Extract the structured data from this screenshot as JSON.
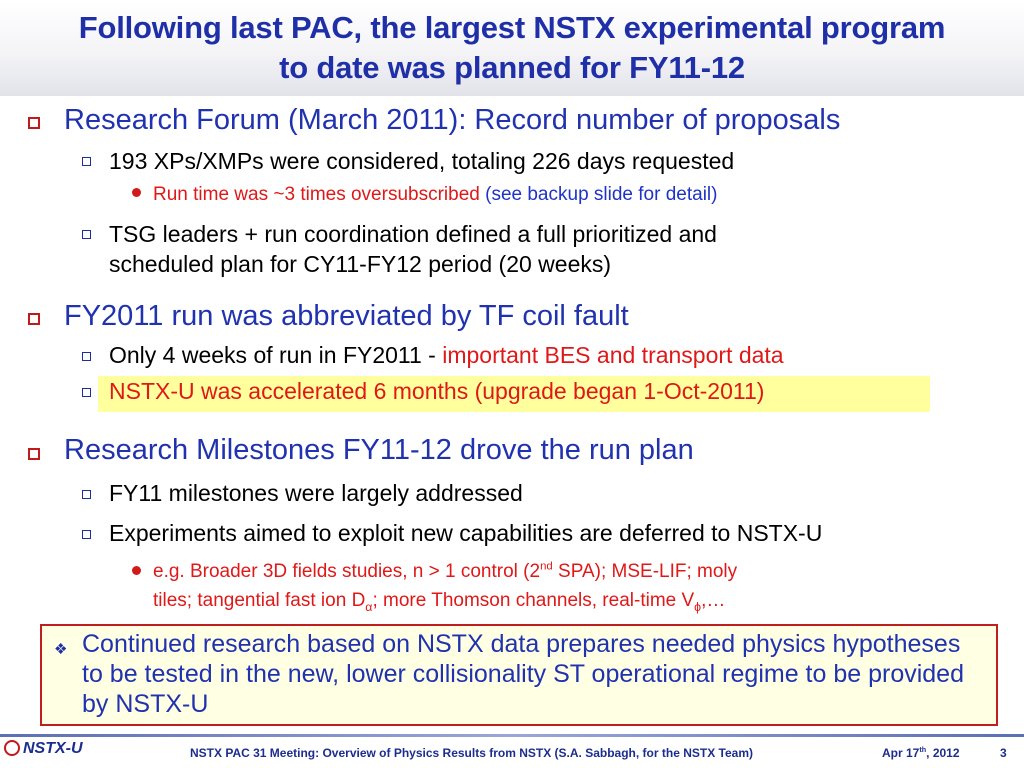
{
  "title": {
    "line1": "Following last PAC, the largest NSTX experimental program",
    "line2": "to date was planned for FY11-12"
  },
  "section1": {
    "heading": "Research Forum (March 2011): Record number of proposals",
    "item1": "193 XPs/XMPs were considered, totaling 226 days requested",
    "item1_sub_red": "Run time was ~3 times oversubscribed",
    "item1_sub_blue": "(see backup slide for detail)",
    "item2_line1": "TSG leaders + run coordination defined a full prioritized and",
    "item2_line2": "scheduled plan for CY11-FY12 period (20 weeks)"
  },
  "section2": {
    "heading": "FY2011 run was abbreviated by TF coil fault",
    "item1_black": "Only 4 weeks of run in FY2011 -",
    "item1_red": "important BES and transport data",
    "item2": "NSTX-U was accelerated 6 months (upgrade began 1-Oct-2011)"
  },
  "section3": {
    "heading": "Research Milestones FY11-12 drove the run plan",
    "item1": "FY11 milestones were largely addressed",
    "item2": "Experiments aimed to exploit new capabilities are deferred to NSTX-U",
    "sub_line1_a": "e.g. Broader 3D fields studies, n > 1 control (2",
    "sub_line1_sup": "nd",
    "sub_line1_b": " SPA); MSE-LIF; moly",
    "sub_line2_a": "tiles; tangential fast ion D",
    "sub_line2_sub1": "α",
    "sub_line2_b": "; more Thomson channels, real-time V",
    "sub_line2_sub2": "ϕ",
    "sub_line2_c": ",…"
  },
  "callout": {
    "text": "Continued research based on NSTX data prepares needed physics hypotheses to be tested in the new, lower collisionality ST operational regime to be provided by NSTX-U"
  },
  "footer": {
    "logo": "NSTX-U",
    "meeting": "NSTX PAC 31 Meeting: Overview of Physics Results from NSTX (S.A. Sabbagh, for the NSTX Team)",
    "date_a": "Apr 17",
    "date_sup": "th",
    "date_b": ", 2012",
    "page": "3"
  },
  "colors": {
    "title_blue": "#1f2fa8",
    "heading_blue": "#2032b0",
    "emphasis_red": "#e01818",
    "highlight_yellow": "#ffff9e",
    "callout_border": "#c01f1f"
  },
  "icons": {
    "level1_bullet": "square-bullet-icon",
    "level2_bullet": "square-bullet-icon",
    "level3_bullet": "round-bullet-icon",
    "callout_bullet": "diamond-bullet-icon"
  }
}
